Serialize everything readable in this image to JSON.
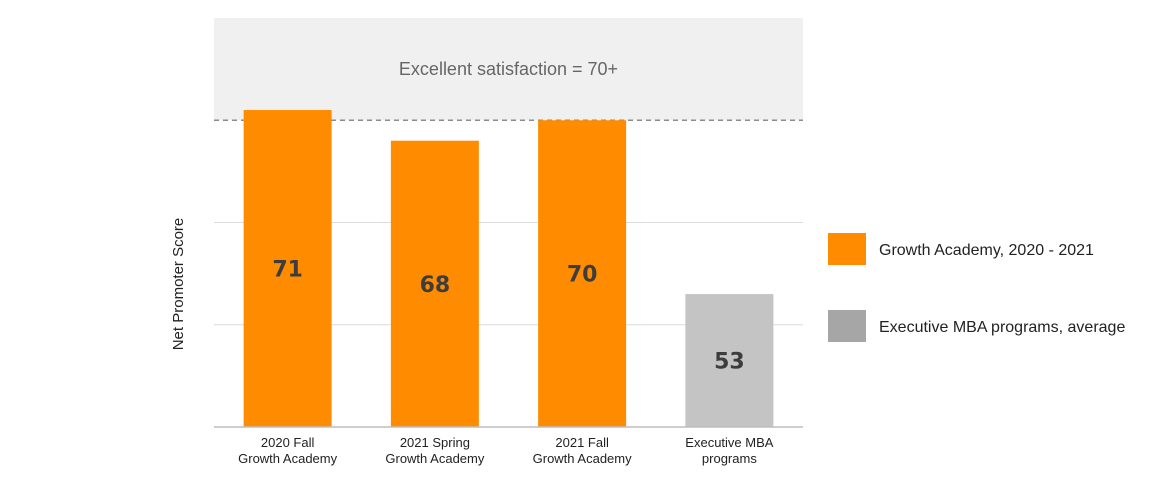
{
  "chart_data": {
    "type": "bar",
    "categories": [
      [
        "2020 Fall",
        "Growth Academy"
      ],
      [
        "2021 Spring",
        "Growth Academy"
      ],
      [
        "2021 Fall",
        "Growth Academy"
      ],
      [
        "Executive MBA",
        "programs"
      ]
    ],
    "values": [
      71,
      68,
      70,
      53
    ],
    "series_index": [
      0,
      0,
      0,
      1
    ],
    "series": [
      {
        "name": "Growth Academy, 2020 - 2021",
        "color": "#FF8C00"
      },
      {
        "name": "Executive MBA programs, average",
        "color": "#A6A6A6"
      }
    ],
    "bar_colors": [
      "#FF8C00",
      "#FF8C00",
      "#FF8C00",
      "#C4C4C4"
    ],
    "threshold": {
      "value": 70,
      "label": "Excellent satisfaction = 70+"
    },
    "ylim": [
      40,
      80
    ],
    "gridlines": [
      40,
      50,
      60,
      70
    ],
    "ylabel": "Net Promoter Score",
    "xlabel": "",
    "legend_position": "right"
  }
}
